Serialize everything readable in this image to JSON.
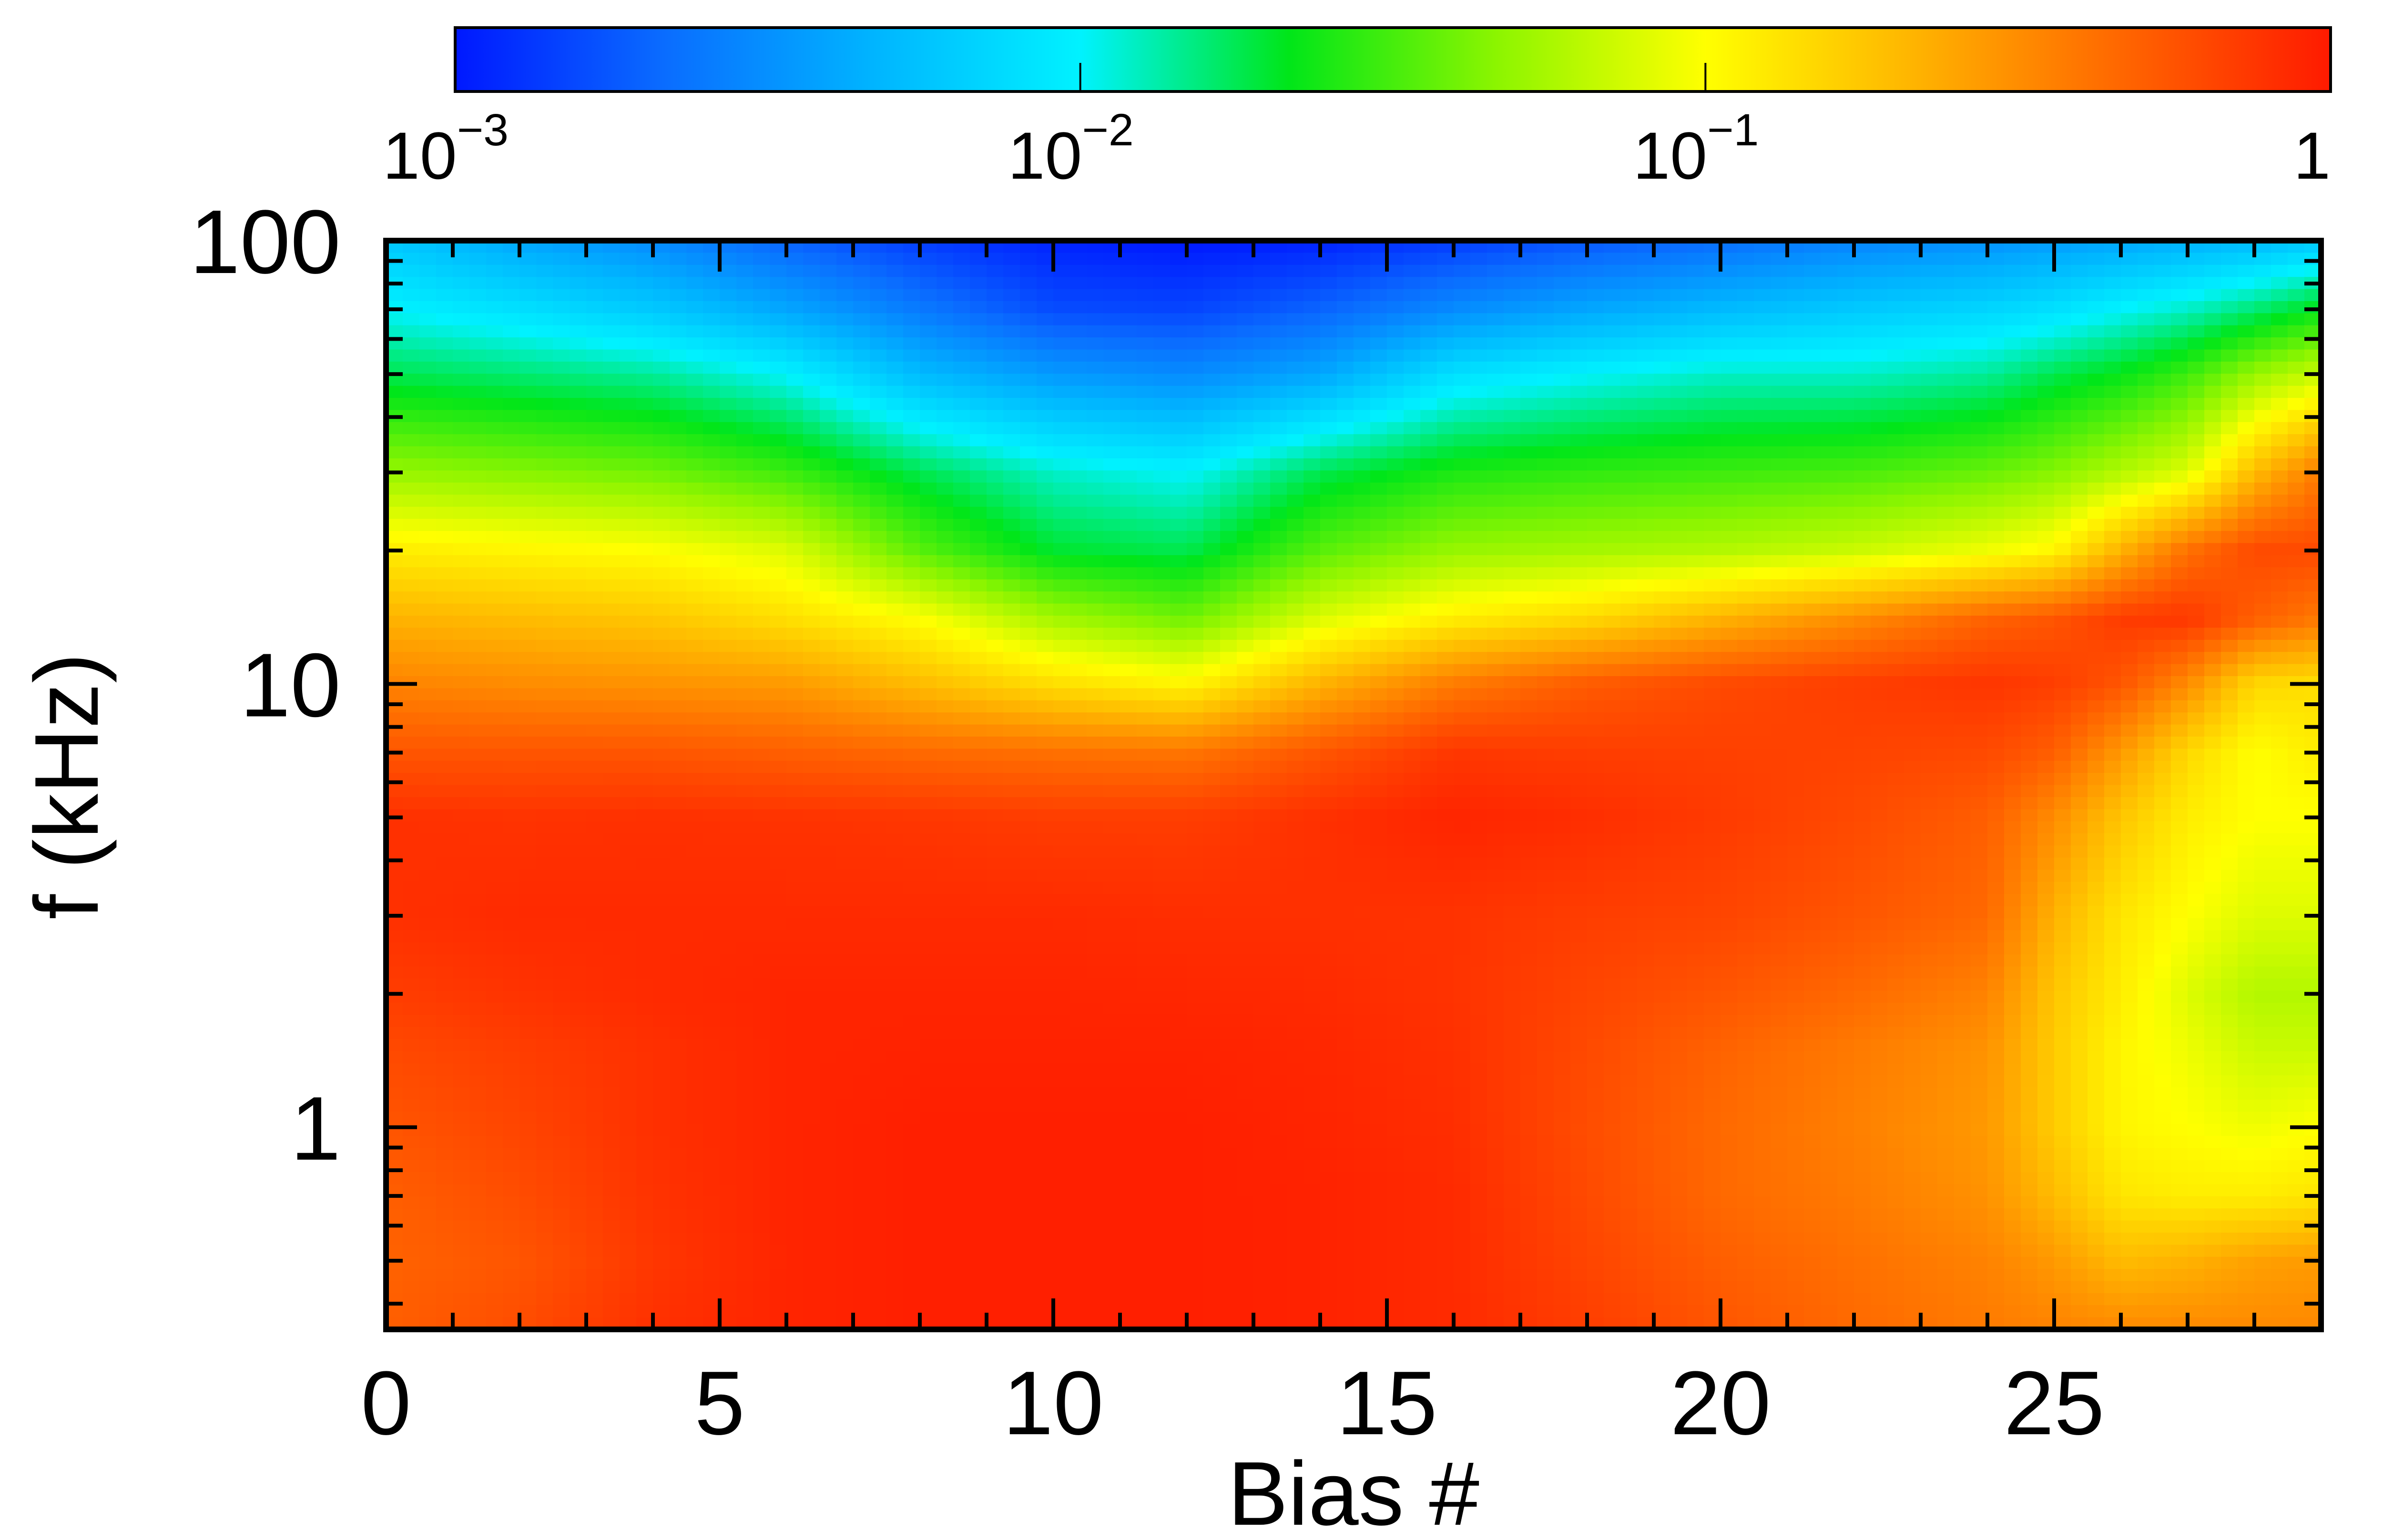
{
  "chart_data": {
    "type": "heatmap",
    "title": "",
    "xlabel": "Bias #",
    "ylabel": "f (kHz)",
    "x_range": [
      0,
      29
    ],
    "y_range": [
      0.35,
      100
    ],
    "y_scale": "log",
    "x_ticks": [
      {
        "value": 0,
        "label": "0"
      },
      {
        "value": 5,
        "label": "5"
      },
      {
        "value": 10,
        "label": "10"
      },
      {
        "value": 15,
        "label": "15"
      },
      {
        "value": 20,
        "label": "20"
      },
      {
        "value": 25,
        "label": "25"
      }
    ],
    "y_ticks": [
      {
        "value": 1,
        "label": "1"
      },
      {
        "value": 10,
        "label": "10"
      },
      {
        "value": 100,
        "label": "100"
      }
    ],
    "colorbar": {
      "scale": "log",
      "range": [
        0.001,
        1
      ],
      "placement": "top",
      "ticks": [
        {
          "value": 0.001,
          "mantissa": "10",
          "exponent": "−3"
        },
        {
          "value": 0.01,
          "mantissa": "10",
          "exponent": "−2"
        },
        {
          "value": 0.1,
          "mantissa": "10",
          "exponent": "−1"
        },
        {
          "value": 1,
          "mantissa": "1",
          "exponent": ""
        }
      ],
      "colormap": [
        "#0018ff",
        "#0a6cff",
        "#00b4ff",
        "#00f2ff",
        "#00e619",
        "#8cf500",
        "#ffff00",
        "#ffb400",
        "#ff6600",
        "#ff1a00"
      ]
    },
    "x_samples": [
      0,
      2,
      4,
      6,
      8,
      10,
      12,
      14,
      16,
      18,
      20,
      22,
      24,
      25,
      26,
      27,
      28,
      29
    ],
    "y_samples": [
      0.35,
      0.5,
      0.7,
      1,
      1.5,
      2,
      3,
      5,
      7,
      10,
      14,
      20,
      30,
      50,
      70,
      100
    ],
    "z": [
      [
        0.5,
        0.6,
        0.8,
        0.9,
        0.95,
        0.95,
        0.95,
        0.92,
        0.85,
        0.7,
        0.55,
        0.45,
        0.38,
        0.35,
        0.33,
        0.33,
        0.33,
        0.33
      ],
      [
        0.48,
        0.55,
        0.75,
        0.9,
        0.95,
        0.95,
        0.95,
        0.92,
        0.85,
        0.65,
        0.5,
        0.42,
        0.35,
        0.28,
        0.2,
        0.22,
        0.26,
        0.28
      ],
      [
        0.5,
        0.6,
        0.78,
        0.9,
        0.95,
        0.95,
        0.95,
        0.92,
        0.85,
        0.62,
        0.45,
        0.38,
        0.3,
        0.2,
        0.13,
        0.12,
        0.12,
        0.13
      ],
      [
        0.55,
        0.65,
        0.8,
        0.9,
        0.95,
        0.95,
        0.95,
        0.9,
        0.82,
        0.6,
        0.45,
        0.36,
        0.28,
        0.17,
        0.11,
        0.1,
        0.09,
        0.1
      ],
      [
        0.62,
        0.7,
        0.8,
        0.9,
        0.92,
        0.92,
        0.92,
        0.88,
        0.8,
        0.62,
        0.48,
        0.38,
        0.3,
        0.17,
        0.11,
        0.09,
        0.07,
        0.07
      ],
      [
        0.7,
        0.78,
        0.85,
        0.9,
        0.9,
        0.9,
        0.88,
        0.85,
        0.78,
        0.65,
        0.55,
        0.45,
        0.35,
        0.18,
        0.12,
        0.08,
        0.06,
        0.06
      ],
      [
        0.8,
        0.85,
        0.85,
        0.85,
        0.85,
        0.85,
        0.82,
        0.8,
        0.78,
        0.7,
        0.65,
        0.55,
        0.45,
        0.22,
        0.13,
        0.1,
        0.08,
        0.08
      ],
      [
        0.8,
        0.78,
        0.8,
        0.78,
        0.75,
        0.7,
        0.7,
        0.8,
        0.9,
        0.82,
        0.72,
        0.62,
        0.5,
        0.32,
        0.18,
        0.12,
        0.1,
        0.1
      ],
      [
        0.55,
        0.55,
        0.55,
        0.5,
        0.45,
        0.42,
        0.4,
        0.55,
        0.75,
        0.7,
        0.68,
        0.66,
        0.62,
        0.5,
        0.28,
        0.15,
        0.1,
        0.12
      ],
      [
        0.35,
        0.32,
        0.3,
        0.28,
        0.2,
        0.14,
        0.11,
        0.22,
        0.38,
        0.52,
        0.62,
        0.7,
        0.76,
        0.7,
        0.55,
        0.32,
        0.15,
        0.14
      ],
      [
        0.22,
        0.2,
        0.18,
        0.14,
        0.1,
        0.055,
        0.04,
        0.08,
        0.12,
        0.15,
        0.22,
        0.32,
        0.48,
        0.55,
        0.72,
        0.75,
        0.5,
        0.38
      ],
      [
        0.12,
        0.11,
        0.1,
        0.08,
        0.035,
        0.02,
        0.018,
        0.035,
        0.05,
        0.055,
        0.06,
        0.07,
        0.09,
        0.11,
        0.22,
        0.42,
        0.62,
        0.62
      ],
      [
        0.05,
        0.045,
        0.04,
        0.03,
        0.018,
        0.012,
        0.01,
        0.018,
        0.025,
        0.028,
        0.03,
        0.032,
        0.038,
        0.045,
        0.06,
        0.08,
        0.2,
        0.38
      ],
      [
        0.018,
        0.016,
        0.014,
        0.01,
        0.005,
        0.0035,
        0.003,
        0.004,
        0.008,
        0.01,
        0.012,
        0.012,
        0.014,
        0.018,
        0.022,
        0.03,
        0.05,
        0.07
      ],
      [
        0.01,
        0.008,
        0.006,
        0.004,
        0.0025,
        0.0016,
        0.0015,
        0.002,
        0.003,
        0.004,
        0.005,
        0.006,
        0.007,
        0.008,
        0.01,
        0.012,
        0.016,
        0.022
      ],
      [
        0.006,
        0.004,
        0.003,
        0.002,
        0.0014,
        0.0011,
        0.001,
        0.0011,
        0.0014,
        0.0018,
        0.0022,
        0.0028,
        0.0032,
        0.0036,
        0.004,
        0.0045,
        0.005,
        0.006
      ]
    ]
  }
}
